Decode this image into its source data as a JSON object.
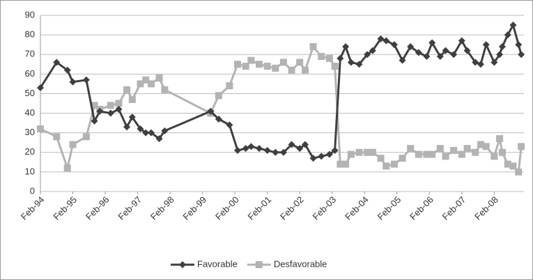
{
  "chart_data": {
    "type": "line",
    "x": [
      "1994-02",
      "1994-08",
      "1994-12",
      "1995-02",
      "1995-07",
      "1995-10",
      "1995-12",
      "1996-04",
      "1996-07",
      "1996-10",
      "1996-12",
      "1997-03",
      "1997-05",
      "1997-07",
      "1997-10",
      "1997-12",
      "1999-05",
      "1999-08",
      "1999-12",
      "2000-03",
      "2000-06",
      "2000-08",
      "2000-11",
      "2001-02",
      "2001-05",
      "2001-08",
      "2001-11",
      "2002-02",
      "2002-04",
      "2002-07",
      "2002-10",
      "2003-01",
      "2003-03",
      "2003-05",
      "2003-07",
      "2003-09",
      "2003-12",
      "2004-03",
      "2004-05",
      "2004-08",
      "2004-10",
      "2005-01",
      "2005-04",
      "2005-07",
      "2005-10",
      "2006-01",
      "2006-03",
      "2006-06",
      "2006-08",
      "2006-11",
      "2007-02",
      "2007-04",
      "2007-07",
      "2007-09",
      "2007-11",
      "2008-02",
      "2008-04",
      "2008-05",
      "2008-07",
      "2008-09",
      "2008-11",
      "2008-12"
    ],
    "series": [
      {
        "name": "Favorable",
        "color": "#3f3f3f",
        "marker": "diamond",
        "values": [
          53,
          66,
          62,
          56,
          57,
          36,
          41,
          40,
          42,
          33,
          38,
          32,
          30,
          30,
          27,
          31,
          41,
          37,
          34,
          21,
          22,
          23,
          22,
          21,
          20,
          20,
          24,
          22,
          24,
          17,
          18,
          19,
          21,
          68,
          74,
          66,
          65,
          70,
          72,
          78,
          77,
          75,
          67,
          74,
          71,
          69,
          76,
          69,
          72,
          70,
          77,
          72,
          66,
          65,
          75,
          66,
          70,
          74,
          80,
          85,
          75,
          70
        ]
      },
      {
        "name": "Desfavorable",
        "color": "#b3b3b3",
        "marker": "square",
        "values": [
          32,
          28,
          12,
          24,
          28,
          44,
          42,
          44,
          45,
          52,
          47,
          55,
          57,
          55,
          58,
          52,
          40,
          49,
          54,
          65,
          64,
          67,
          65,
          64,
          63,
          66,
          62,
          66,
          62,
          74,
          69,
          68,
          64,
          14,
          14,
          19,
          20,
          20,
          20,
          17,
          13,
          14,
          17,
          22,
          19,
          19,
          19,
          22,
          18,
          21,
          19,
          22,
          20,
          24,
          23,
          18,
          27,
          20,
          14,
          13,
          10,
          23
        ]
      }
    ],
    "xlim": [
      "1994-02",
      "2009-01"
    ],
    "xticks": [
      {
        "value": "1994-02",
        "label": "Feb-94"
      },
      {
        "value": "1995-02",
        "label": "Feb-95"
      },
      {
        "value": "1996-02",
        "label": "Feb-96"
      },
      {
        "value": "1997-02",
        "label": "Feb-97"
      },
      {
        "value": "1998-02",
        "label": "Feb-98"
      },
      {
        "value": "1999-02",
        "label": "Feb-99"
      },
      {
        "value": "2000-02",
        "label": "Feb-00"
      },
      {
        "value": "2001-02",
        "label": "Feb-01"
      },
      {
        "value": "2002-02",
        "label": "Feb-02"
      },
      {
        "value": "2003-02",
        "label": "Feb-03"
      },
      {
        "value": "2004-02",
        "label": "Feb-04"
      },
      {
        "value": "2005-02",
        "label": "Feb-05"
      },
      {
        "value": "2006-02",
        "label": "Feb-06"
      },
      {
        "value": "2007-02",
        "label": "Feb-07"
      },
      {
        "value": "2008-02",
        "label": "Feb-08"
      }
    ],
    "ylim": [
      0,
      90
    ],
    "yticks": [
      0,
      10,
      20,
      30,
      40,
      50,
      60,
      70,
      80,
      90
    ],
    "grid": true,
    "legend": "bottom"
  }
}
